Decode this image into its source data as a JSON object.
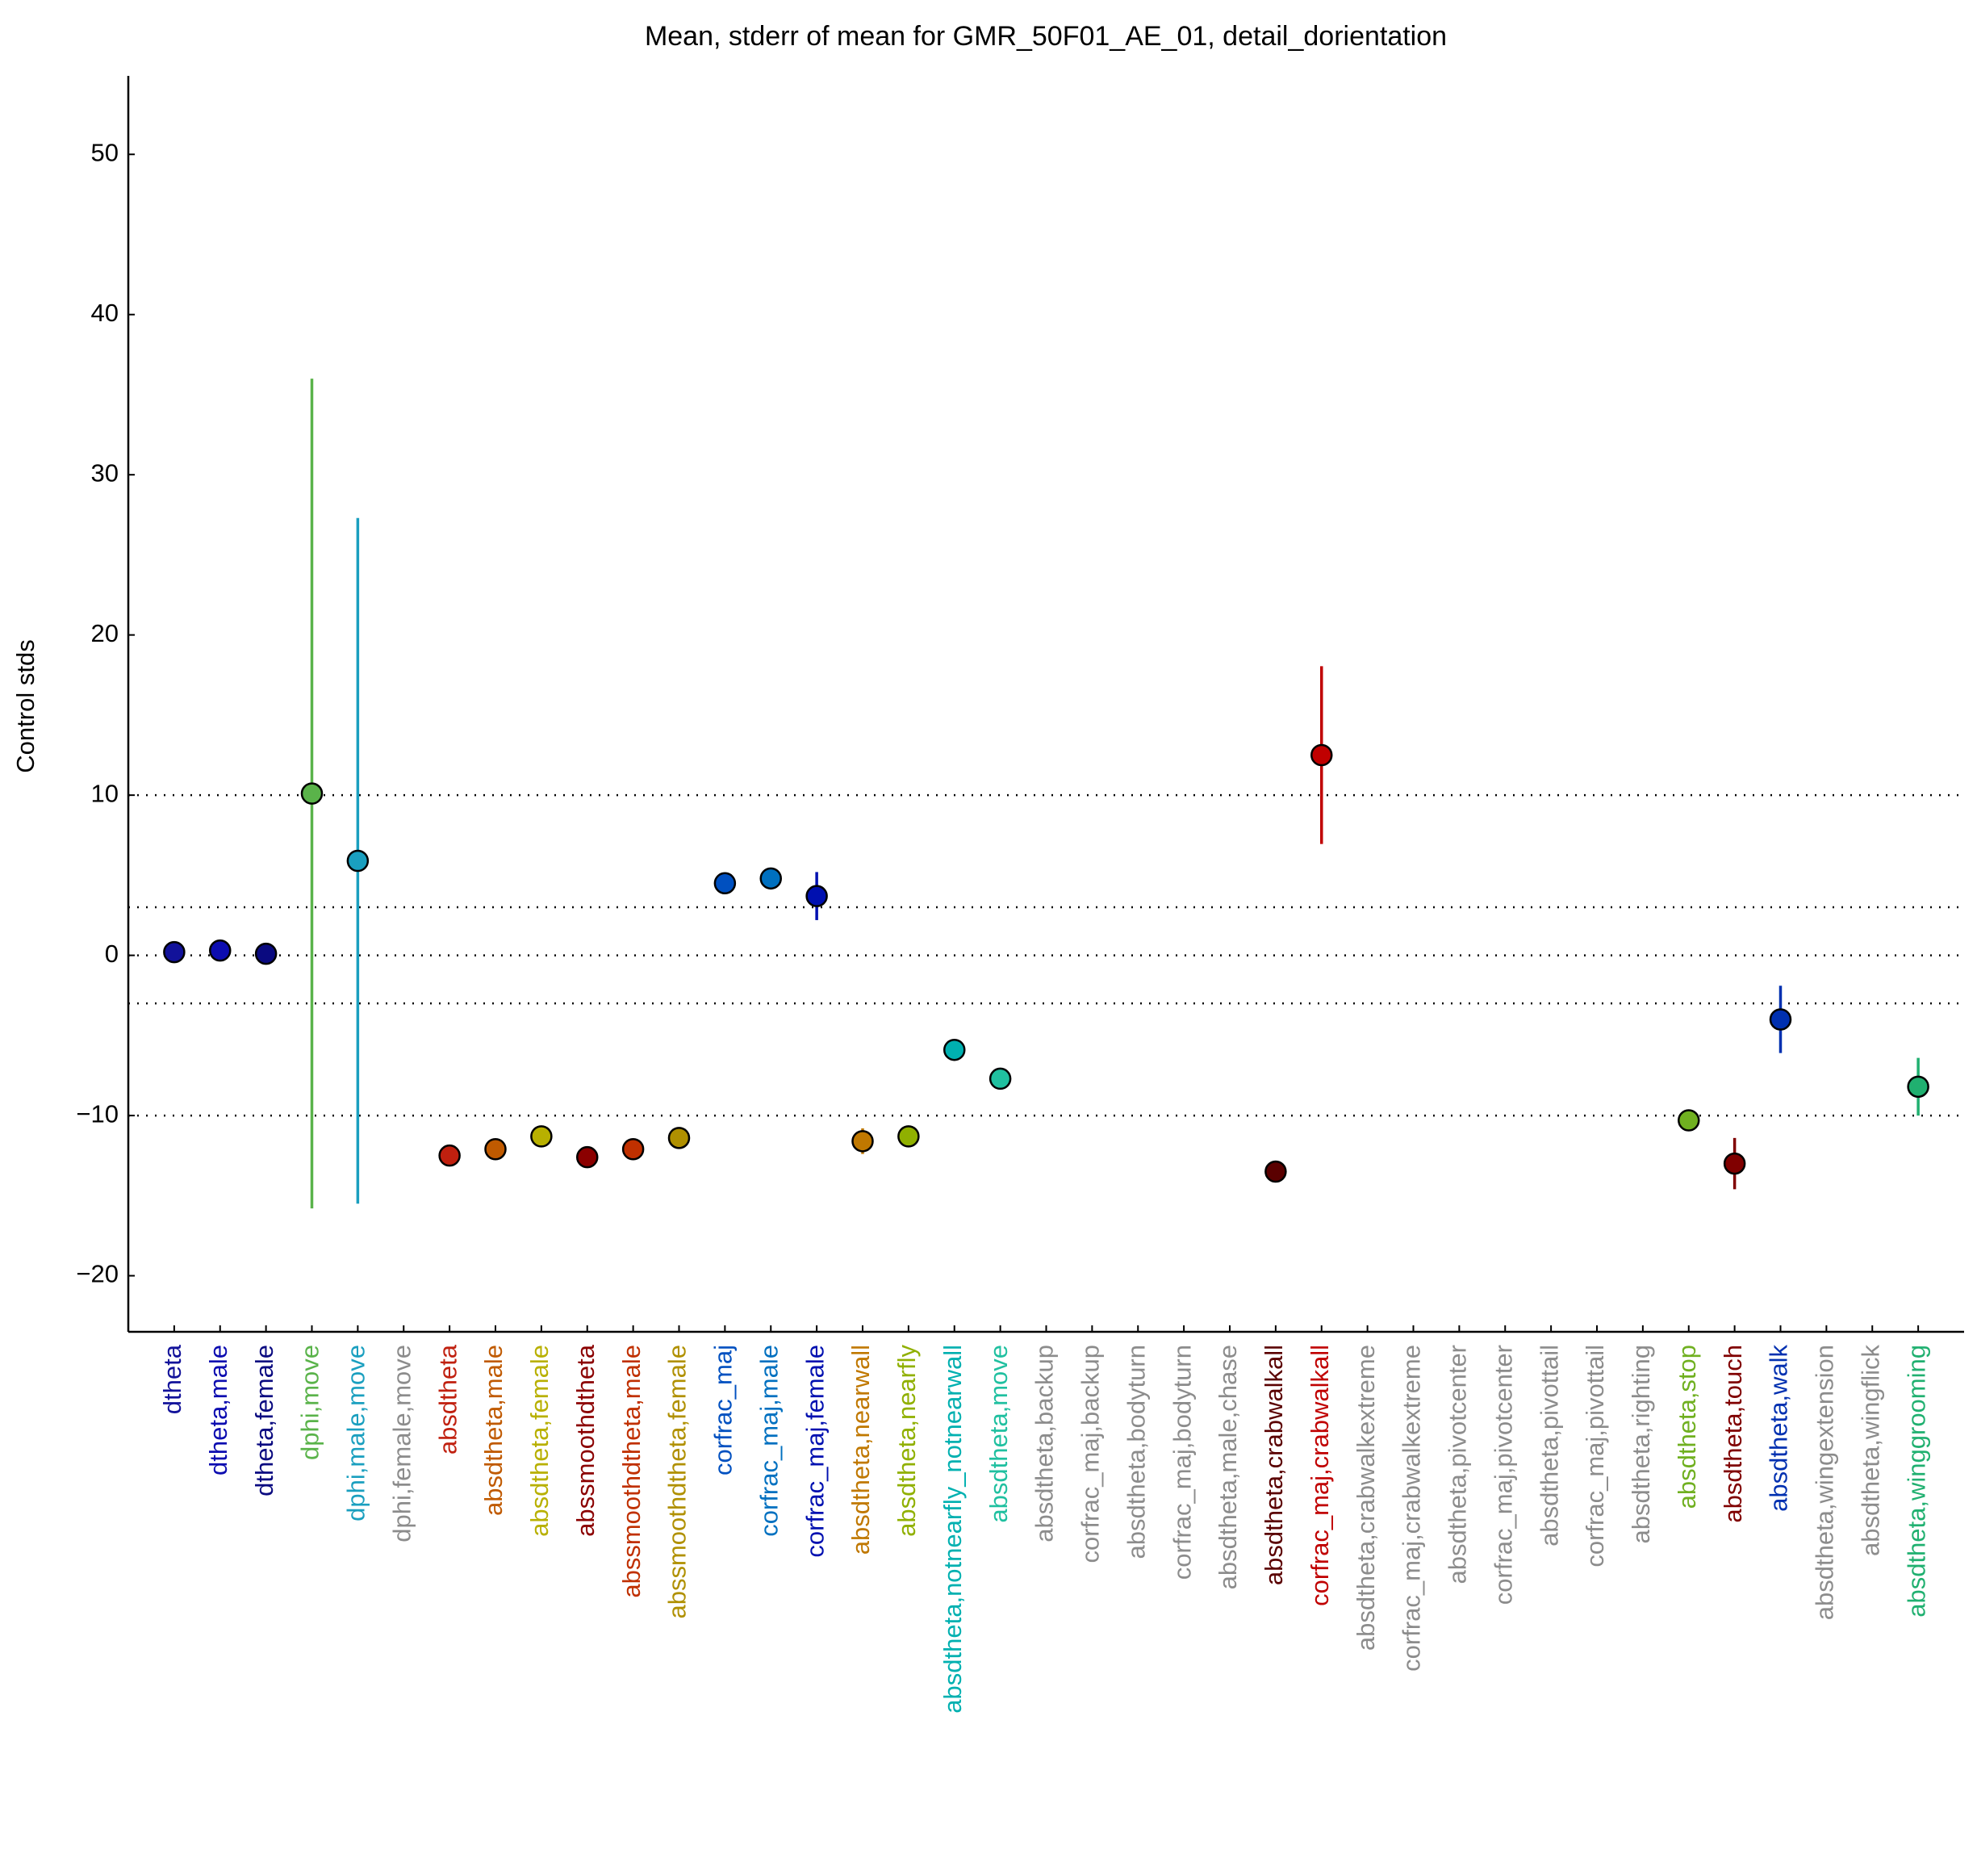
{
  "chart_data": {
    "type": "errorbar",
    "title": "Mean, stderr of mean for GMR_50F01_AE_01, detail_dorientation",
    "y_label": "Control stds",
    "categories": [
      "dtheta",
      "dtheta,male",
      "dtheta,female",
      "dphi,move",
      "dphi,male,move",
      "dphi,female,move",
      "absdtheta",
      "absdtheta,male",
      "absdtheta,female",
      "abssmoothdtheta",
      "abssmoothdtheta,male",
      "abssmoothdtheta,female",
      "corfrac_maj",
      "corfrac_maj,male",
      "corfrac_maj,female",
      "absdtheta,nearwall",
      "absdtheta,nearfly",
      "absdtheta,notnearfly_notnearwall",
      "absdtheta,move",
      "absdtheta,backup",
      "corfrac_maj,backup",
      "absdtheta,bodyturn",
      "corfrac_maj,bodyturn",
      "absdtheta,male,chase",
      "absdtheta,crabwalkall",
      "corfrac_maj,crabwalkall",
      "absdtheta,crabwalkextreme",
      "corfrac_maj,crabwalkextreme",
      "absdtheta,pivotcenter",
      "corfrac_maj,pivotcenter",
      "absdtheta,pivottail",
      "corfrac_maj,pivottail",
      "absdtheta,righting",
      "absdtheta,stop",
      "absdtheta,touch",
      "absdtheta,walk",
      "absdtheta,wingextension",
      "absdtheta,wingflick",
      "absdtheta,winggrooming"
    ],
    "values": [
      0.2,
      0.3,
      0.1,
      10.1,
      5.9,
      null,
      -12.5,
      -12.1,
      -11.3,
      -12.6,
      -12.1,
      -11.4,
      4.5,
      4.8,
      3.7,
      -11.6,
      -11.3,
      -5.9,
      -7.7,
      null,
      null,
      null,
      null,
      null,
      -13.5,
      12.5,
      null,
      null,
      null,
      null,
      null,
      null,
      null,
      -10.3,
      -13.0,
      -4.0,
      null,
      null,
      -8.2
    ],
    "errors": [
      0.1,
      0.1,
      0.1,
      25.9,
      21.4,
      null,
      0.2,
      0.2,
      0.2,
      0.2,
      0.2,
      0.2,
      0.2,
      0.5,
      1.5,
      0.8,
      0.3,
      0.2,
      0.4,
      null,
      null,
      null,
      null,
      null,
      0.5,
      5.55,
      null,
      null,
      null,
      null,
      null,
      null,
      null,
      0.4,
      1.6,
      2.1,
      null,
      null,
      1.8
    ],
    "colors": [
      "#12129a",
      "#0c0cb0",
      "#0a0a80",
      "#5ab34a",
      "#1a9fbf",
      "#8c8c8c",
      "#c0200f",
      "#c05a00",
      "#b8b000",
      "#8b0000",
      "#c03000",
      "#b09000",
      "#0050c0",
      "#0070c0",
      "#0010b0",
      "#c07800",
      "#90b000",
      "#00b0b0",
      "#20c0a0",
      "#8c8c8c",
      "#8c8c8c",
      "#8c8c8c",
      "#8c8c8c",
      "#8c8c8c",
      "#5a0000",
      "#c00000",
      "#8c8c8c",
      "#8c8c8c",
      "#8c8c8c",
      "#8c8c8c",
      "#8c8c8c",
      "#8c8c8c",
      "#8c8c8c",
      "#70b020",
      "#800000",
      "#0030b0",
      "#8c8c8c",
      "#8c8c8c",
      "#20b070"
    ],
    "ylim": [
      -23.5,
      54.9
    ],
    "yticks": [
      {
        "value": -20,
        "label": "−20"
      },
      {
        "value": -10,
        "label": "−10"
      },
      0,
      10,
      20,
      30,
      40,
      50
    ],
    "reference_lines": [
      10,
      3,
      0,
      -3,
      -10
    ]
  }
}
